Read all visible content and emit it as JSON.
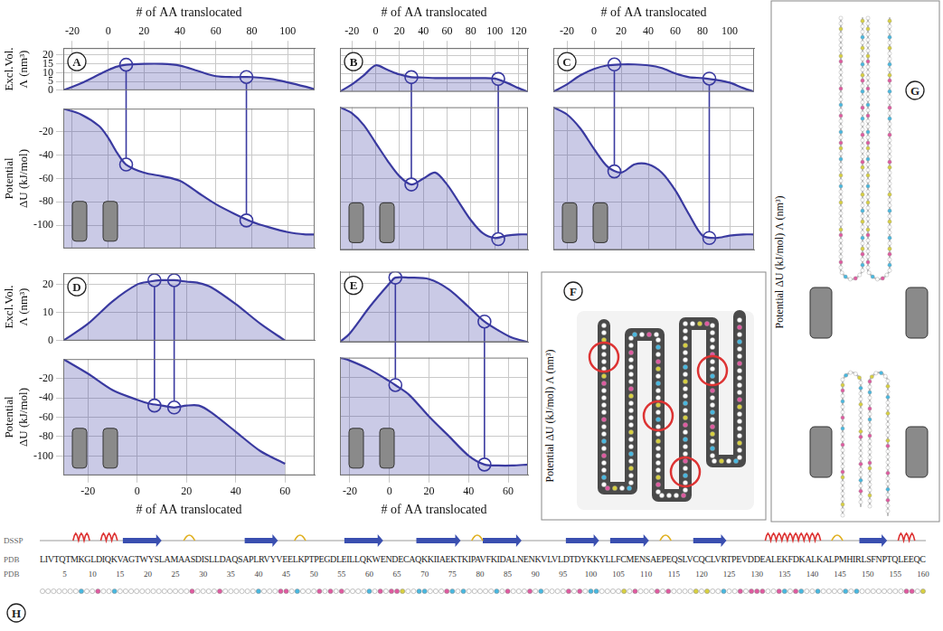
{
  "chart_data": [
    {
      "panel": "A",
      "type": "area",
      "x_label": "# of AA translocated",
      "y_label": [
        "Excl.Vol.",
        "Λ (nm³)"
      ],
      "xlim": [
        -25,
        115
      ],
      "xticks": [
        -20,
        0,
        20,
        40,
        60,
        80,
        100
      ],
      "ylim": [
        0,
        24
      ],
      "yticks": [
        0,
        5,
        10,
        15,
        20
      ],
      "grid": true,
      "tick_labels": true,
      "color": "#3a3aa0",
      "x": [
        -25,
        -15,
        -5,
        0,
        5,
        10,
        20,
        30,
        40,
        50,
        60,
        70,
        80,
        90,
        100,
        110,
        115
      ],
      "values": [
        0,
        4,
        9,
        11.5,
        13.5,
        14.5,
        15,
        15,
        14,
        11,
        8,
        7.5,
        7.5,
        6.5,
        4.5,
        2,
        0.5
      ],
      "markers": {
        "marker": "circle",
        "x": [
          10,
          77
        ],
        "values": [
          14.5,
          7.5
        ]
      }
    },
    {
      "panel": "A",
      "type": "area",
      "y_label": [
        "Potential",
        "ΔU (kJ/mol)"
      ],
      "xlim": [
        -25,
        115
      ],
      "xticks": [
        -20,
        0,
        20,
        40,
        60,
        80,
        100
      ],
      "ylim": [
        -120,
        0
      ],
      "yticks": [
        -100,
        -80,
        -60,
        -40,
        -20
      ],
      "grid": true,
      "tick_labels": "y",
      "color": "#3a3aa0",
      "x": [
        -25,
        -15,
        -5,
        0,
        5,
        10,
        20,
        30,
        40,
        50,
        60,
        70,
        80,
        90,
        100,
        110,
        115
      ],
      "values": [
        0,
        -5,
        -15,
        -25,
        -38,
        -48,
        -55,
        -58,
        -62,
        -72,
        -82,
        -90,
        -97,
        -102,
        -106,
        -108,
        -108
      ],
      "markers": {
        "marker": "circle",
        "x": [
          10,
          77
        ],
        "values": [
          -48,
          -96
        ]
      }
    },
    {
      "panel": "B",
      "type": "area",
      "x_label": "# of AA translocated",
      "xlim": [
        -30,
        128
      ],
      "xticks": [
        -20,
        0,
        20,
        40,
        60,
        80,
        100,
        120
      ],
      "ylim": [
        0,
        24
      ],
      "yticks": [
        0,
        5,
        10,
        15,
        20
      ],
      "grid": true,
      "tick_labels": "x",
      "color": "#3a3aa0",
      "x": [
        -30,
        -20,
        -10,
        0,
        10,
        20,
        30,
        40,
        50,
        60,
        70,
        80,
        90,
        100,
        110,
        120,
        128
      ],
      "values": [
        0,
        4,
        9,
        14.5,
        12,
        9.5,
        8,
        7.8,
        7.5,
        7.5,
        7.5,
        7.5,
        7.5,
        7.2,
        5,
        2,
        0
      ],
      "markers": {
        "marker": "circle",
        "x": [
          30,
          103
        ],
        "values": [
          8,
          7
        ]
      }
    },
    {
      "panel": "B",
      "type": "area",
      "xlim": [
        -30,
        128
      ],
      "xticks": [
        -20,
        0,
        20,
        40,
        60,
        80,
        100,
        120
      ],
      "ylim": [
        -120,
        0
      ],
      "yticks": [
        -100,
        -80,
        -60,
        -40,
        -20
      ],
      "grid": true,
      "tick_labels": false,
      "color": "#3a3aa0",
      "x": [
        -30,
        -20,
        -10,
        0,
        10,
        20,
        30,
        40,
        50,
        60,
        70,
        80,
        90,
        100,
        110,
        120,
        128
      ],
      "values": [
        0,
        -5,
        -15,
        -30,
        -45,
        -58,
        -65,
        -60,
        -55,
        -65,
        -80,
        -95,
        -106,
        -110,
        -108,
        -107,
        -107
      ],
      "markers": {
        "marker": "circle",
        "x": [
          30,
          103
        ],
        "values": [
          -65,
          -111
        ]
      }
    },
    {
      "panel": "C",
      "type": "area",
      "x_label": "# of AA translocated",
      "xlim": [
        -30,
        118
      ],
      "xticks": [
        -20,
        0,
        20,
        40,
        60,
        80,
        100
      ],
      "ylim": [
        0,
        24
      ],
      "yticks": [
        0,
        5,
        10,
        15,
        20
      ],
      "grid": true,
      "tick_labels": "x",
      "color": "#3a3aa0",
      "x": [
        -30,
        -20,
        -10,
        0,
        10,
        20,
        30,
        40,
        50,
        60,
        70,
        80,
        90,
        100,
        110,
        118
      ],
      "values": [
        0,
        4,
        9,
        12.5,
        14.5,
        15,
        15,
        14.5,
        13,
        10,
        8,
        7.5,
        6.5,
        5,
        2,
        0
      ],
      "markers": {
        "marker": "circle",
        "x": [
          15,
          85
        ],
        "values": [
          15,
          7.2
        ]
      }
    },
    {
      "panel": "C",
      "type": "area",
      "xlim": [
        -30,
        118
      ],
      "xticks": [
        -20,
        0,
        20,
        40,
        60,
        80,
        100
      ],
      "ylim": [
        -120,
        0
      ],
      "yticks": [
        -100,
        -80,
        -60,
        -40,
        -20
      ],
      "grid": true,
      "tick_labels": false,
      "color": "#3a3aa0",
      "x": [
        -30,
        -20,
        -10,
        0,
        10,
        20,
        30,
        40,
        50,
        60,
        70,
        80,
        90,
        100,
        110,
        118
      ],
      "values": [
        0,
        -6,
        -18,
        -35,
        -50,
        -55,
        -48,
        -48,
        -55,
        -70,
        -90,
        -108,
        -110,
        -108,
        -107,
        -107
      ],
      "markers": {
        "marker": "circle",
        "x": [
          15,
          85
        ],
        "values": [
          -54,
          -110
        ]
      }
    },
    {
      "panel": "D",
      "type": "area",
      "y_label": [
        "Excl.Vol.",
        "Λ (nm³)"
      ],
      "xlim": [
        -30,
        72
      ],
      "xticks": [
        -20,
        0,
        20,
        40,
        60
      ],
      "ylim": [
        0,
        24
      ],
      "yticks": [
        0,
        10,
        20
      ],
      "grid": true,
      "tick_labels": "y",
      "color": "#3a3aa0",
      "x": [
        -30,
        -20,
        -10,
        0,
        5,
        10,
        15,
        20,
        25,
        30,
        40,
        50,
        60
      ],
      "values": [
        0,
        6,
        14,
        20,
        21,
        21.5,
        21.5,
        21,
        20.5,
        19,
        13,
        6,
        0
      ],
      "markers": {
        "marker": "circle",
        "x": [
          7,
          15
        ],
        "values": [
          21.5,
          21.5
        ]
      }
    },
    {
      "panel": "D",
      "type": "area",
      "x_label": "# of AA translocated",
      "y_label": [
        "Potential",
        "ΔU (kJ/mol)"
      ],
      "xlim": [
        -30,
        72
      ],
      "xticks": [
        -20,
        0,
        20,
        40,
        60
      ],
      "ylim": [
        -120,
        0
      ],
      "yticks": [
        -100,
        -80,
        -60,
        -40,
        -20
      ],
      "grid": true,
      "tick_labels": true,
      "color": "#3a3aa0",
      "x": [
        -30,
        -20,
        -10,
        0,
        5,
        10,
        15,
        20,
        25,
        30,
        40,
        50,
        60
      ],
      "values": [
        0,
        -15,
        -32,
        -42,
        -46,
        -48,
        -50,
        -48,
        -48,
        -55,
        -75,
        -95,
        -108
      ],
      "markers": {
        "marker": "circle",
        "x": [
          7,
          15
        ],
        "values": [
          -48,
          -50
        ]
      }
    },
    {
      "panel": "E",
      "type": "area",
      "xlim": [
        -25,
        70
      ],
      "xticks": [
        -20,
        0,
        20,
        40,
        60
      ],
      "ylim": [
        0,
        24
      ],
      "yticks": [
        0,
        10,
        20
      ],
      "grid": true,
      "tick_labels": false,
      "color": "#3a3aa0",
      "x": [
        -25,
        -20,
        -10,
        0,
        3,
        10,
        20,
        30,
        40,
        48,
        55,
        62,
        70
      ],
      "values": [
        0,
        3,
        12,
        20,
        22,
        22,
        21.5,
        18,
        12,
        7,
        4,
        1.5,
        0
      ],
      "markers": {
        "marker": "circle",
        "x": [
          3,
          48
        ],
        "values": [
          22,
          7
        ]
      }
    },
    {
      "panel": "E",
      "type": "area",
      "x_label": "# of AA translocated",
      "xlim": [
        -25,
        70
      ],
      "xticks": [
        -20,
        0,
        20,
        40,
        60
      ],
      "ylim": [
        -120,
        0
      ],
      "yticks": [
        -100,
        -80,
        -60,
        -40,
        -20
      ],
      "grid": true,
      "tick_labels": "x",
      "color": "#3a3aa0",
      "x": [
        -25,
        -20,
        -10,
        0,
        3,
        10,
        20,
        30,
        40,
        48,
        55,
        62,
        70
      ],
      "values": [
        0,
        -3,
        -12,
        -24,
        -28,
        -38,
        -60,
        -80,
        -100,
        -109,
        -110,
        -110,
        -109
      ],
      "markers": {
        "marker": "circle",
        "x": [
          3,
          48
        ],
        "values": [
          -28,
          -109
        ]
      }
    }
  ],
  "diagrams": {
    "F": {
      "label": "F",
      "side_text": "Potential ΔU (kJ/mol) Λ (nm³)"
    },
    "G": {
      "label": "G",
      "side_text": "Potential ΔU (kJ/mol) Λ (nm³)"
    },
    "H": {
      "label": "H",
      "row_labels": [
        "DSSP",
        "PDB",
        "PDB"
      ],
      "sequence": "LIVTQTMKGLDIQKVAGTWYSLAMAASDISLLDAQSAPLRVYVEELKPTPEGDLEILLQKWENDECAQKKIIAEKTKIPAVFKIDALNENKVLVLDTDYKKYLLFCMENSAEPEQSLVCQCLVRTPEVDDEALEKFDKALKALPMHIRLSFNPTQLEEQC",
      "positions": [
        5,
        10,
        15,
        20,
        25,
        30,
        35,
        40,
        45,
        50,
        55,
        60,
        65,
        70,
        75,
        80,
        85,
        90,
        95,
        100,
        105,
        110,
        115,
        120,
        125,
        130,
        135,
        140,
        145,
        150,
        155,
        160
      ]
    }
  }
}
